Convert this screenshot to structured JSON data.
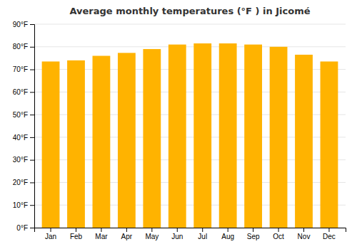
{
  "chart_data": {
    "type": "bar",
    "title": "Average monthly temperatures (°F ) in Jicomé",
    "categories": [
      "Jan",
      "Feb",
      "Mar",
      "Apr",
      "May",
      "Jun",
      "Jul",
      "Aug",
      "Sep",
      "Oct",
      "Nov",
      "Dec"
    ],
    "values": [
      73.5,
      74.0,
      76.0,
      77.3,
      79.0,
      81.0,
      81.5,
      81.5,
      81.0,
      80.0,
      76.5,
      73.5
    ],
    "color": "#FFB300",
    "ylim": [
      0,
      90
    ],
    "yticks": [
      {
        "value": 0,
        "label": "0°F"
      },
      {
        "value": 10,
        "label": "10°F"
      },
      {
        "value": 20,
        "label": "20°F"
      },
      {
        "value": 30,
        "label": "30°F"
      },
      {
        "value": 40,
        "label": "40°F"
      },
      {
        "value": 50,
        "label": "50°F"
      },
      {
        "value": 60,
        "label": "60°F"
      },
      {
        "value": 70,
        "label": "70°F"
      },
      {
        "value": 80,
        "label": "80°F"
      },
      {
        "value": 90,
        "label": "90°F"
      }
    ],
    "grid": true
  }
}
